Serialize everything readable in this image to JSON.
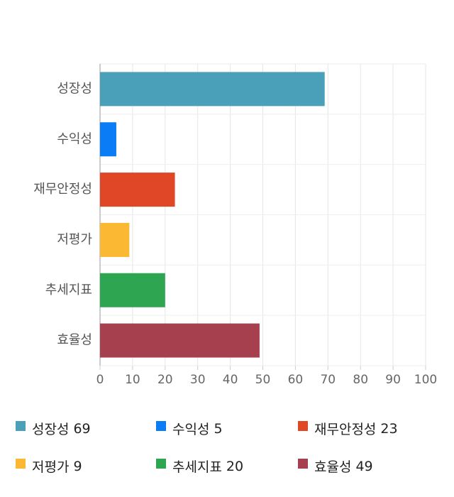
{
  "chart_data": {
    "type": "bar",
    "orientation": "horizontal",
    "categories": [
      "성장성",
      "수익성",
      "재무안정성",
      "저평가",
      "추세지표",
      "효율성"
    ],
    "values": [
      69,
      5,
      23,
      9,
      20,
      49
    ],
    "colors": [
      "#4aa0b9",
      "#0a7cf6",
      "#e04726",
      "#fbb832",
      "#2ea651",
      "#a6404e"
    ],
    "xlim": [
      0,
      100
    ],
    "xticks": [
      0,
      10,
      20,
      30,
      40,
      50,
      60,
      70,
      80,
      90,
      100
    ],
    "grid": true
  }
}
